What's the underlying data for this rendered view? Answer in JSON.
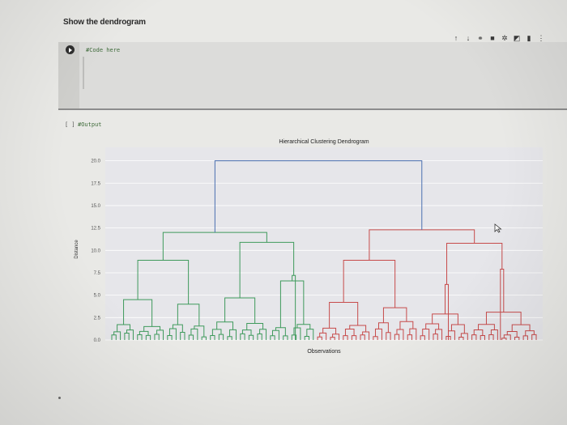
{
  "notebook": {
    "section_title": "Show the dendrogram",
    "code_cell": {
      "source": "#Code here"
    },
    "output_cell": {
      "exec_count": "[ ]",
      "source": "#Output"
    },
    "toolbar": [
      {
        "icon": "arrow-up-icon",
        "glyph": "↑"
      },
      {
        "icon": "arrow-down-icon",
        "glyph": "↓"
      },
      {
        "icon": "link-icon",
        "glyph": "⚭"
      },
      {
        "icon": "comment-icon",
        "glyph": "■"
      },
      {
        "icon": "settings-icon",
        "glyph": "✲"
      },
      {
        "icon": "mirror-icon",
        "glyph": "◩"
      },
      {
        "icon": "delete-icon",
        "glyph": "▮"
      },
      {
        "icon": "more-icon",
        "glyph": "⋮"
      }
    ]
  },
  "colors": {
    "plot_bg": "#e6e6ea",
    "grid": "#ffffff",
    "root_link": "#4a6fb0",
    "cluster_green": "#3f9a5c",
    "cluster_red": "#c74b4b"
  },
  "chart_data": {
    "type": "dendrogram",
    "title": "Hierarchical Clustering Dendrogram",
    "xlabel": "Observations",
    "ylabel": "Distance",
    "yticks": [
      "0.0",
      "2.5",
      "5.0",
      "7.5",
      "10.0",
      "12.5",
      "15.0",
      "17.5",
      "20.0"
    ],
    "ylim": [
      0,
      21.5
    ],
    "grid": true,
    "leaf_count": 100,
    "merges": [
      {
        "series": "blue",
        "left": 0,
        "right": 1,
        "height": 20.0
      },
      {
        "series": "green",
        "left": 0,
        "right": 1,
        "height": 12.0
      },
      {
        "series": "green",
        "left": 0,
        "right": 1,
        "height": 8.9
      },
      {
        "series": "green",
        "left": 0,
        "right": 1,
        "height": 10.9
      },
      {
        "series": "green",
        "left": 0,
        "right": 1,
        "height": 6.6
      },
      {
        "series": "green",
        "left": 0,
        "right": 1,
        "height": 7.2
      },
      {
        "series": "green",
        "left": 0,
        "right": 1,
        "height": 4.5
      },
      {
        "series": "green",
        "left": 0,
        "right": 1,
        "height": 4.0
      },
      {
        "series": "green",
        "left": 0,
        "right": 1,
        "height": 4.7
      },
      {
        "series": "red",
        "left": 0,
        "right": 1,
        "height": 12.3
      },
      {
        "series": "red",
        "left": 0,
        "right": 1,
        "height": 8.9
      },
      {
        "series": "red",
        "left": 0,
        "right": 1,
        "height": 10.8
      },
      {
        "series": "red",
        "left": 0,
        "right": 1,
        "height": 7.9
      },
      {
        "series": "red",
        "left": 0,
        "right": 1,
        "height": 6.2
      },
      {
        "series": "red",
        "left": 0,
        "right": 1,
        "height": 4.2
      },
      {
        "series": "red",
        "left": 0,
        "right": 1,
        "height": 3.6
      },
      {
        "series": "red",
        "left": 0,
        "right": 1,
        "height": 2.9
      },
      {
        "series": "red",
        "left": 0,
        "right": 1,
        "height": 3.1
      }
    ]
  }
}
